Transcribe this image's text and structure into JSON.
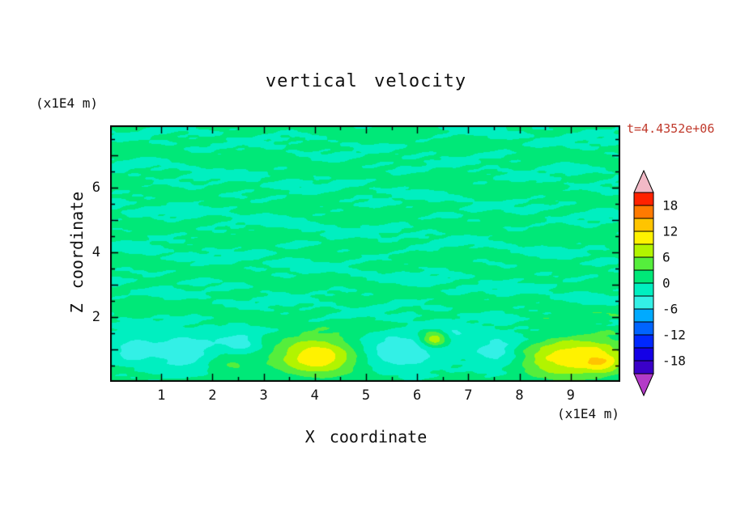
{
  "page": {
    "title": "vertical velocity",
    "time_annotation": "t=4.4352e+06"
  },
  "colors": {
    "time_annotation": "#c0392b",
    "axis": "#000000",
    "background": "#ffffff"
  },
  "axes": {
    "x_label": "X coordinate",
    "x_unit": "(x1E4 m)",
    "y_label": "Z coordinate",
    "y_unit": "(x1E4 m)",
    "x_tick_labels": [
      "1",
      "2",
      "3",
      "4",
      "5",
      "6",
      "7",
      "8",
      "9"
    ],
    "x_tick_values": [
      1,
      2,
      3,
      4,
      5,
      6,
      7,
      8,
      9
    ],
    "y_tick_labels": [
      "2",
      "4",
      "6"
    ],
    "y_tick_values": [
      2,
      4,
      6
    ]
  },
  "colorbar": {
    "min": -21,
    "max": 21,
    "step": 3,
    "tick_labels": [
      "18",
      "12",
      "6",
      "0",
      "-6",
      "-12",
      "-18"
    ],
    "tick_values": [
      18,
      12,
      6,
      0,
      -6,
      -12,
      -18
    ],
    "colors": [
      "#3A00C8",
      "#1400E6",
      "#0028FF",
      "#0064FF",
      "#00AAFF",
      "#33F0E6",
      "#00EFC0",
      "#00E878",
      "#55EE3C",
      "#B2F400",
      "#FFF200",
      "#FFC400",
      "#FF7A00",
      "#FF2200"
    ],
    "under_arrow_color": "#B43BC8",
    "over_arrow_color": "#F2B9C6"
  },
  "chart_data": {
    "type": "heatmap",
    "title": "vertical velocity",
    "xlabel": "X coordinate (x1E4 m)",
    "ylabel": "Z coordinate (x1E4 m)",
    "time": "t=4.4352e+06",
    "x_range": [
      0,
      9.97
    ],
    "z_range": [
      0,
      7.93
    ],
    "contour_interval": 3,
    "colorbar_range": [
      -21,
      21
    ],
    "legend_position": "right",
    "background": {
      "mean": 0.45,
      "transition_z": 2.0,
      "lower_amp": 0.25,
      "lower_falloff": 4,
      "upper_clamp": [
        -2.9,
        2.9
      ],
      "modulation": {
        "a": 0.3,
        "kx": 0.55,
        "kz": 0.9,
        "ph": 2.0
      },
      "components": [
        {
          "a": 1.05,
          "kx": 0.9,
          "kz": 5.2,
          "ph": 1.3
        },
        {
          "a": 0.85,
          "kx": 2.1,
          "kz": -7.5,
          "ph": 4.0
        },
        {
          "a": 0.65,
          "kx": 3.3,
          "kz": 11.0,
          "ph": 2.2
        },
        {
          "a": 0.55,
          "kx": 5.1,
          "kz": -15.5,
          "ph": 0.7
        },
        {
          "a": 0.5,
          "kx": 1.6,
          "kz": 9.3,
          "ph": 3.6
        },
        {
          "a": 0.45,
          "kx": 7.3,
          "kz": 21.0,
          "ph": 5.1
        },
        {
          "a": 0.4,
          "kx": 4.2,
          "kz": -12.7,
          "ph": 5.9
        },
        {
          "a": 0.35,
          "kx": 11.0,
          "kz": -29.0,
          "ph": 2.9
        }
      ]
    },
    "features": [
      {
        "x": 4.05,
        "z": 0.8,
        "sx": 0.55,
        "sz": 0.42,
        "amp": 11.0
      },
      {
        "x": 9.3,
        "z": 0.8,
        "sx": 0.62,
        "sz": 0.45,
        "amp": 9.5
      },
      {
        "x": 9.62,
        "z": 0.55,
        "sx": 0.22,
        "sz": 0.2,
        "amp": 4.0
      },
      {
        "x": 8.55,
        "z": 0.6,
        "sx": 0.45,
        "sz": 0.32,
        "amp": 4.5
      },
      {
        "x": 6.33,
        "z": 1.3,
        "sx": 0.17,
        "sz": 0.17,
        "amp": 8.5
      },
      {
        "x": 2.35,
        "z": 0.6,
        "sx": 0.35,
        "sz": 0.28,
        "amp": 4.0
      },
      {
        "x": 1.45,
        "z": 0.95,
        "sx": 0.5,
        "sz": 0.38,
        "amp": -6.2
      },
      {
        "x": 2.55,
        "z": 1.15,
        "sx": 0.28,
        "sz": 0.28,
        "amp": -5.0
      },
      {
        "x": 0.4,
        "z": 1.05,
        "sx": 0.28,
        "sz": 0.3,
        "amp": -4.5
      },
      {
        "x": 5.65,
        "z": 0.95,
        "sx": 0.55,
        "sz": 0.4,
        "amp": -6.2
      },
      {
        "x": 6.75,
        "z": 1.45,
        "sx": 0.18,
        "sz": 0.15,
        "amp": -4.0
      },
      {
        "x": 7.55,
        "z": 1.0,
        "sx": 0.32,
        "sz": 0.35,
        "amp": -5.5
      }
    ]
  }
}
